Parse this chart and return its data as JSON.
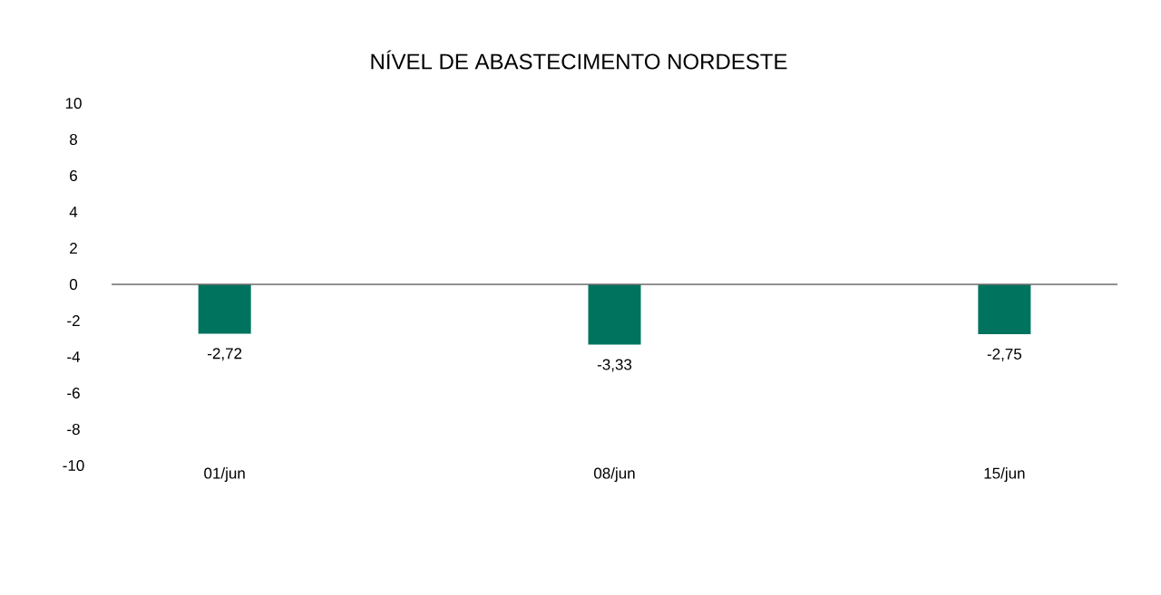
{
  "chart_data": {
    "type": "bar",
    "title": "NÍVEL DE ABASTECIMENTO NORDESTE",
    "categories": [
      "01/jun",
      "08/jun",
      "15/jun"
    ],
    "values": [
      -2.72,
      -3.33,
      -2.75
    ],
    "value_labels": [
      "-2,72",
      "-3,33",
      "-2,75"
    ],
    "color": "#00735f",
    "ylim": [
      -10,
      10
    ],
    "yticks": [
      -10,
      -8,
      -6,
      -4,
      -2,
      0,
      2,
      4,
      6,
      8,
      10
    ]
  }
}
